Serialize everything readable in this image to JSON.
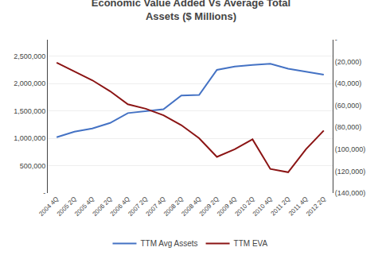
{
  "chart_data": {
    "type": "line",
    "title": "Economic Value Added Vs Average Total\nAssets ($ Millions)",
    "categories": [
      "2004 4Q",
      "2005 2Q",
      "2005 4Q",
      "2006 2Q",
      "2006 4Q",
      "2007 2Q",
      "2007 4Q",
      "2008 2Q",
      "2008 4Q",
      "2009 2Q",
      "2009 4Q",
      "2010 2Q",
      "2010 4Q",
      "2011 2Q",
      "2011 4Q",
      "2012 2Q"
    ],
    "series": [
      {
        "name": "TTM Avg Assets",
        "color": "#4472C4",
        "values": [
          1020000,
          1120000,
          1180000,
          1280000,
          1460000,
          1490000,
          1530000,
          1780000,
          1790000,
          2250000,
          2310000,
          2340000,
          2360000,
          2270000,
          2220000,
          2160000
        ]
      },
      {
        "name": "TTM EVA",
        "color": "#8B1414",
        "axis": "y2",
        "values": [
          -21000,
          -29000,
          -37000,
          -47000,
          -59000,
          -63000,
          -69000,
          -78000,
          -90000,
          -107000,
          -100000,
          -91000,
          -118000,
          -121000,
          -100000,
          -83000
        ]
      }
    ],
    "ylim": [
      0,
      2800000
    ],
    "yticks": [
      {
        "value": 0,
        "label": "-"
      },
      {
        "value": 500000,
        "label": "500,000"
      },
      {
        "value": 1000000,
        "label": "1,000,000"
      },
      {
        "value": 1500000,
        "label": "1,500,000"
      },
      {
        "value": 2000000,
        "label": "2,000,000"
      },
      {
        "value": 2500000,
        "label": "2,500,000"
      }
    ],
    "y2lim": [
      -140000,
      0
    ],
    "y2ticks": [
      {
        "value": 0,
        "label": "-"
      },
      {
        "value": -20000,
        "label": "(20,000)"
      },
      {
        "value": -40000,
        "label": "(40,000)"
      },
      {
        "value": -60000,
        "label": "(60,000)"
      },
      {
        "value": -80000,
        "label": "(80,000)"
      },
      {
        "value": -100000,
        "label": "(100,000)"
      },
      {
        "value": -120000,
        "label": "(120,000)"
      },
      {
        "value": -140000,
        "label": "(140,000)"
      }
    ],
    "grid": true,
    "legend": "bottom"
  }
}
